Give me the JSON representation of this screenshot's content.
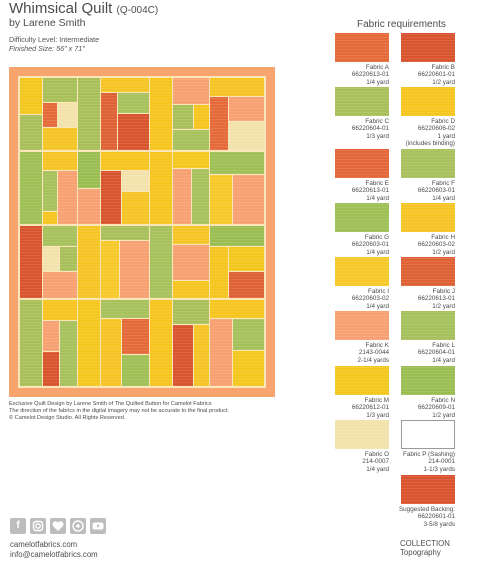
{
  "header": {
    "title": "Whimsical Quilt",
    "code": "(Q-004C)",
    "author": "by Larene Smith",
    "difficulty": "Difficulty Level: Intermediate",
    "finished_size": "Finished Size: 56\" x 71\""
  },
  "requirements_title": "Fabric requirements",
  "colors": {
    "A": "#e46a3a",
    "B": "#d8542f",
    "C": "#a9c05a",
    "D": "#f6c51f",
    "E": "#e4673a",
    "F": "#a7c15c",
    "G": "#9fc055",
    "H": "#f5c425",
    "I": "#f6c829",
    "J": "#df6136",
    "K": "#f7a172",
    "L": "#a6c15b",
    "M": "#f4c71f",
    "N": "#9bbd52",
    "O": "#f3e2ab",
    "P": "#ffffff",
    "backing": "#d9542f"
  },
  "fabrics": [
    {
      "name": "Fabric A",
      "sku": "66220613-01",
      "qty": "1/4 yard",
      "note": ""
    },
    {
      "name": "Fabric B",
      "sku": "66220601-01",
      "qty": "1/2 yard",
      "note": ""
    },
    {
      "name": "Fabric C",
      "sku": "66220604-01",
      "qty": "1/3 yard",
      "note": ""
    },
    {
      "name": "Fabric D",
      "sku": "66220606-02",
      "qty": "1 yard",
      "note": "(includes binding)"
    },
    {
      "name": "Fabric E",
      "sku": "66220613-01",
      "qty": "1/4 yard",
      "note": ""
    },
    {
      "name": "Fabric F",
      "sku": "66220603-01",
      "qty": "1/4 yard",
      "note": ""
    },
    {
      "name": "Fabric G",
      "sku": "66220603-01",
      "qty": "1/4 yard",
      "note": ""
    },
    {
      "name": "Fabric H",
      "sku": "66220603-02",
      "qty": "1/2 yard",
      "note": ""
    },
    {
      "name": "Fabric I",
      "sku": "66220603-02",
      "qty": "1/4 yard",
      "note": ""
    },
    {
      "name": "Fabric J",
      "sku": "66220613-01",
      "qty": "1/2 yard",
      "note": ""
    },
    {
      "name": "Fabric K",
      "sku": "2143-0044",
      "qty": "2-1/4 yards",
      "note": ""
    },
    {
      "name": "Fabric L",
      "sku": "66220604-01",
      "qty": "1/4 yard",
      "note": ""
    },
    {
      "name": "Fabric M",
      "sku": "66220612-01",
      "qty": "1/3 yard",
      "note": ""
    },
    {
      "name": "Fabric N",
      "sku": "66220609-01",
      "qty": "1/2 yard",
      "note": ""
    },
    {
      "name": "Fabric O",
      "sku": "214-0007",
      "qty": "1/4 yard",
      "note": ""
    },
    {
      "name": "Fabric P (Sashing)",
      "sku": "214-0001",
      "qty": "1-1/3 yards",
      "note": ""
    }
  ],
  "backing": {
    "name": "Suggested Backing:",
    "sku": "66220601-01",
    "qty": "3-5/8 yards"
  },
  "fine_print": [
    "Exclusive Quilt Design by Larene Smith of The Quilted Button for Camelot Fabrics",
    "The direction of the fabrics in the digital imagery may not be accurate to the final product.",
    "© Camelot Design Studio. All Rights Reserved."
  ],
  "social_icons": [
    "facebook-icon",
    "instagram-icon",
    "heart-icon",
    "pinterest-icon",
    "youtube-icon"
  ],
  "footer": {
    "website": "camelotfabrics.com",
    "email": "info@camelotfabrics.com",
    "collection_label": "COLLECTION",
    "collection_name": "Topography"
  }
}
